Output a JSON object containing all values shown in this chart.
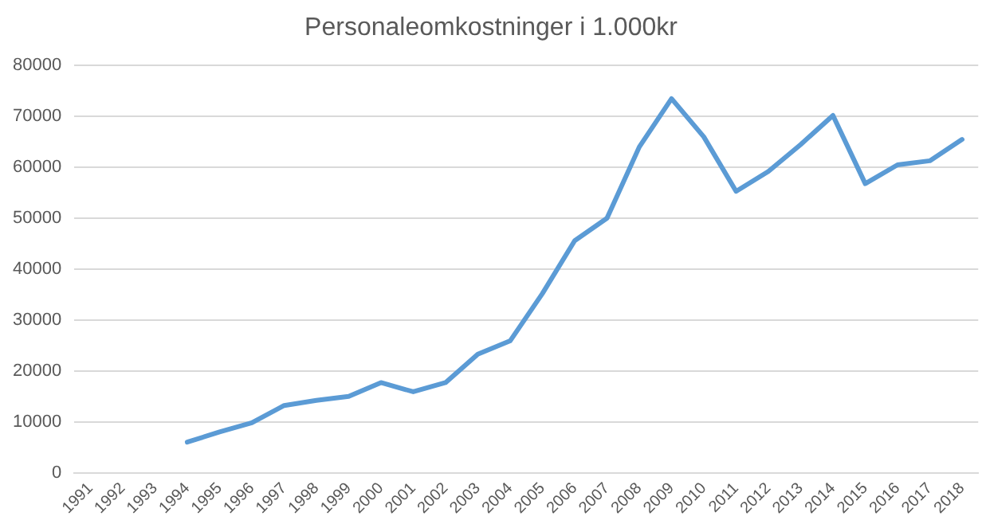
{
  "chart_data": {
    "type": "line",
    "title": "Personaleomkostninger i 1.000kr",
    "categories": [
      "1991",
      "1992",
      "1993",
      "1994",
      "1995",
      "1996",
      "1997",
      "1998",
      "1999",
      "2000",
      "2001",
      "2002",
      "2003",
      "2004",
      "2005",
      "2006",
      "2007",
      "2008",
      "2009",
      "2010",
      "2011",
      "2012",
      "2013",
      "2014",
      "2015",
      "2016",
      "2017",
      "2018"
    ],
    "series": [
      {
        "color": "#5b9bd5",
        "values": [
          null,
          null,
          null,
          6000,
          8000,
          9800,
          13200,
          14200,
          15000,
          17700,
          15900,
          17700,
          23300,
          25900,
          35200,
          45600,
          50000,
          64000,
          73500,
          66000,
          55300,
          59200,
          64500,
          70200,
          56800,
          60500,
          61300,
          65500
        ]
      }
    ],
    "ylim": [
      0,
      80000
    ],
    "yticks": [
      0,
      10000,
      20000,
      30000,
      40000,
      50000,
      60000,
      70000,
      80000
    ],
    "grid": "y",
    "legend": false,
    "marker": "none"
  }
}
